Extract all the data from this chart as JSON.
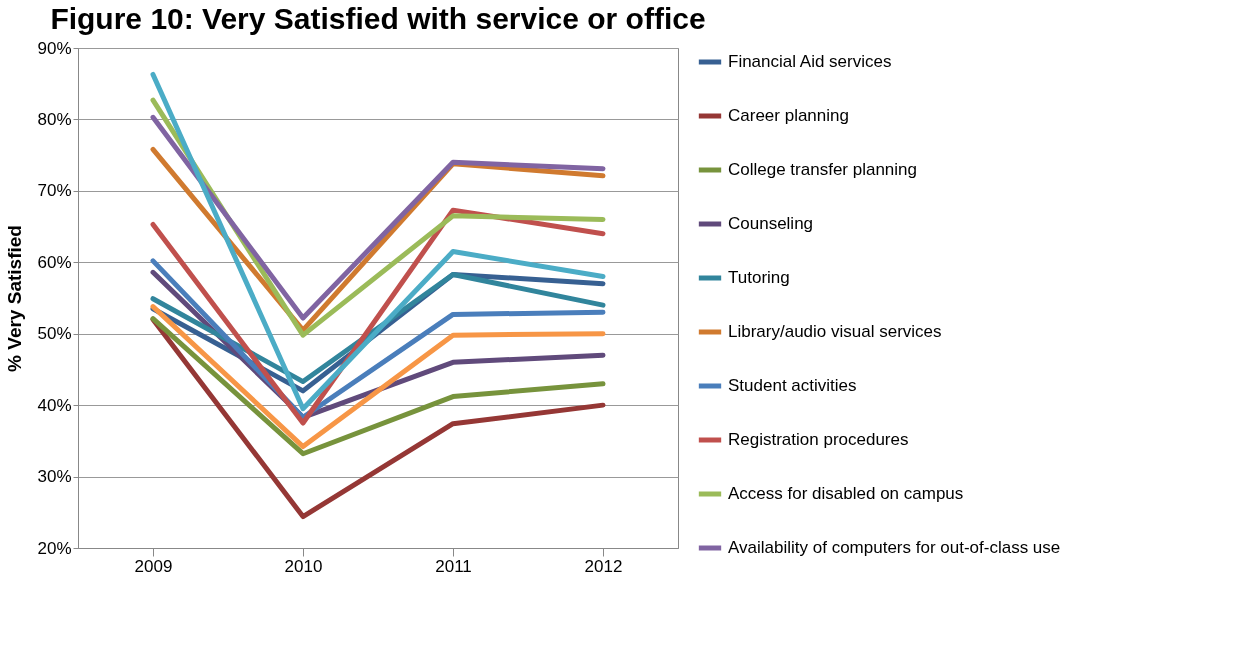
{
  "chart_data": {
    "type": "line",
    "title": "Figure 10: Very Satisfied with service or office",
    "ylabel": "% Very Satisfied",
    "categories": [
      "2009",
      "2010",
      "2011",
      "2012"
    ],
    "ylim": [
      20,
      90
    ],
    "yticks": [
      {
        "value": 20,
        "label": "20%"
      },
      {
        "value": 30,
        "label": "30%"
      },
      {
        "value": 40,
        "label": "40%"
      },
      {
        "value": 50,
        "label": "50%"
      },
      {
        "value": 60,
        "label": "60%"
      },
      {
        "value": 70,
        "label": "70%"
      },
      {
        "value": 80,
        "label": "80%"
      },
      {
        "value": 90,
        "label": "90%"
      }
    ],
    "grid": "y",
    "legend": "right",
    "marker": "none",
    "line_style": "solid",
    "series": [
      {
        "name": "Financial Aid services",
        "color": "#376092",
        "values": [
          53.5,
          42,
          58.3,
          57
        ]
      },
      {
        "name": "Career planning",
        "color": "#953735",
        "values": [
          52,
          24.4,
          37.4,
          40
        ]
      },
      {
        "name": "College transfer planning",
        "color": "#77933c",
        "values": [
          52.1,
          33.2,
          41.2,
          43
        ]
      },
      {
        "name": "Counseling",
        "color": "#604a7b",
        "values": [
          58.6,
          38.3,
          46,
          47
        ]
      },
      {
        "name": "Tutoring",
        "color": "#31859c",
        "values": [
          54.9,
          43.3,
          58.3,
          54
        ]
      },
      {
        "name": "Library/audio visual services",
        "color": "#d07a2f",
        "values": [
          75.8,
          50.5,
          73.8,
          72.1
        ]
      },
      {
        "name": " Student activities",
        "color": "#4a7ebb",
        "values": [
          60.2,
          38.3,
          52.7,
          53
        ]
      },
      {
        "name": "Registration procedures",
        "color": "#c0504d",
        "values": [
          65.3,
          37.5,
          67.3,
          64
        ]
      },
      {
        "name": "Access for disabled on campus",
        "color": "#9bbb59",
        "values": [
          82.7,
          49.8,
          66.5,
          66
        ]
      },
      {
        "name": "Availability of computers for out-of-class use",
        "color": "#8064a2",
        "values": [
          80.3,
          52.2,
          74,
          73.1
        ]
      },
      {
        "color": "#4bacc6",
        "values": [
          86.3,
          39.5,
          61.5,
          58
        ]
      },
      {
        "color": "#f79646",
        "values": [
          53.8,
          34.2,
          49.8,
          50
        ]
      }
    ]
  }
}
